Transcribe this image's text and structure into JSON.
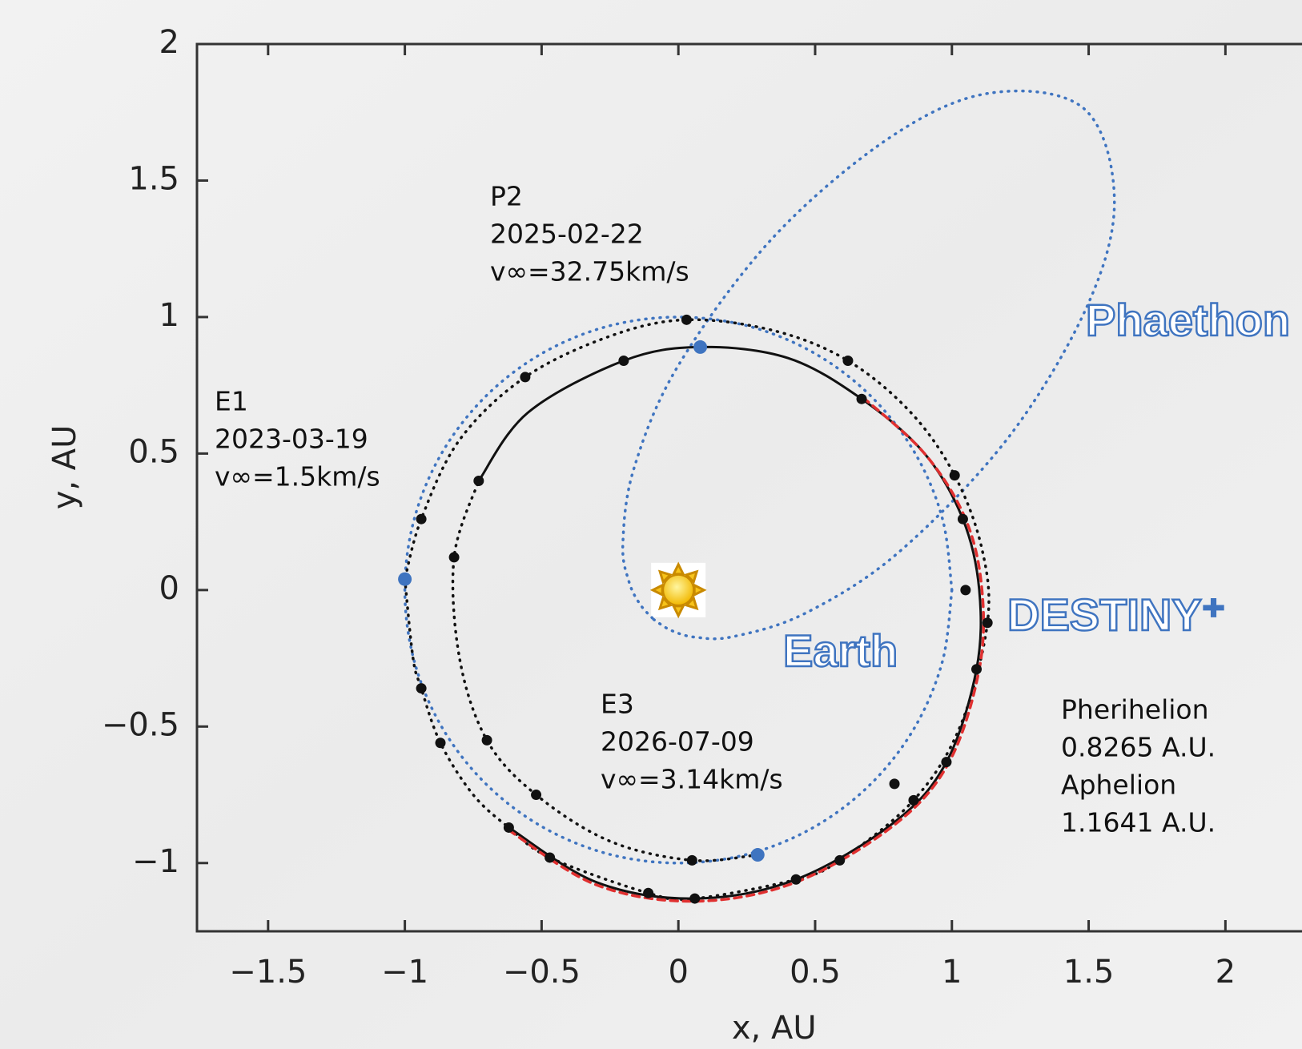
{
  "chart_data": {
    "type": "line",
    "xlabel": "x, AU",
    "ylabel": "y, AU",
    "xlim": [
      -1.76,
      2.28
    ],
    "ylim": [
      -1.25,
      2
    ],
    "xticks": [
      {
        "value": -1.5,
        "label": "−1.5"
      },
      {
        "value": -1,
        "label": "−1"
      },
      {
        "value": -0.5,
        "label": "−0.5"
      },
      0,
      0.5,
      1,
      1.5,
      2
    ],
    "yticks": [
      {
        "value": -1,
        "label": "−1"
      },
      {
        "value": -0.5,
        "label": "−0.5"
      },
      0,
      0.5,
      1,
      1.5,
      2
    ],
    "grid": false,
    "series": [
      {
        "mode": "line",
        "style": "dotted",
        "color": "#3f74c0",
        "x": [
          1,
          0.966,
          0.866,
          0.707,
          0.5,
          0.259,
          0,
          -0.259,
          -0.5,
          -0.707,
          -0.866,
          -0.966,
          -1,
          -0.966,
          -0.866,
          -0.707,
          -0.5,
          -0.259,
          0,
          0.259,
          0.5,
          0.707,
          0.866,
          0.966,
          1
        ],
        "y": [
          0,
          0.259,
          0.5,
          0.707,
          0.866,
          0.966,
          1,
          0.966,
          0.866,
          0.707,
          0.5,
          0.259,
          0,
          -0.259,
          -0.5,
          -0.707,
          -0.866,
          -0.966,
          -1,
          -0.966,
          -0.866,
          -0.707,
          -0.5,
          -0.259,
          0
        ]
      },
      {
        "mode": "line",
        "style": "dotted",
        "color": "#3f74c0",
        "x": [
          -0.09,
          -0.026,
          0.063,
          0.203,
          0.468,
          0.811,
          1.212,
          1.499,
          1.594,
          1.481,
          1.137,
          0.774,
          0.347,
          0,
          -0.162,
          -0.203,
          -0.181,
          -0.141,
          -0.09
        ],
        "y": [
          -0.108,
          -0.148,
          -0.173,
          -0.17,
          -0.083,
          0.143,
          0.566,
          1.05,
          1.436,
          1.765,
          1.82,
          1.658,
          1.292,
          0.823,
          0.447,
          0.17,
          0.032,
          -0.051,
          -0.108
        ]
      },
      {
        "mode": "line",
        "style": "dotted",
        "color": "#111111",
        "x": [
          -1.0,
          -0.97,
          -0.94,
          -0.87,
          -0.75,
          -0.62,
          -0.47,
          -0.11,
          0.06,
          0.43,
          0.59,
          0.86,
          1.03,
          1.13,
          1.11,
          1.01,
          0.85,
          0.62,
          0.35,
          0.03,
          -0.25,
          -0.56,
          -0.8,
          -0.94,
          -1.0
        ],
        "y": [
          0.04,
          -0.25,
          -0.36,
          -0.56,
          -0.75,
          -0.87,
          -0.98,
          -1.11,
          -1.13,
          -1.06,
          -0.99,
          -0.77,
          -0.5,
          -0.12,
          0.15,
          0.42,
          0.65,
          0.84,
          0.95,
          0.99,
          0.93,
          0.78,
          0.55,
          0.26,
          0.04
        ]
      },
      {
        "mode": "line",
        "style": "dotted",
        "color": "#111111",
        "x": [
          0.29,
          0.05,
          -0.25,
          -0.52,
          -0.7,
          -0.8,
          -0.82,
          -0.73
        ],
        "y": [
          -0.97,
          -0.99,
          -0.92,
          -0.75,
          -0.55,
          -0.25,
          0.12,
          0.4
        ]
      },
      {
        "mode": "line",
        "style": "solid",
        "color": "#111111",
        "x": [
          -0.73,
          -0.55,
          -0.2,
          0.08,
          0.4,
          0.67,
          0.9,
          1.04,
          1.1,
          1.09,
          0.98,
          0.79,
          0.43,
          0.06,
          -0.3,
          -0.62
        ],
        "y": [
          0.4,
          0.65,
          0.84,
          0.89,
          0.85,
          0.7,
          0.5,
          0.26,
          0.0,
          -0.29,
          -0.63,
          -0.85,
          -1.06,
          -1.13,
          -1.07,
          -0.87
        ]
      },
      {
        "mode": "line",
        "style": "dashed",
        "color": "#e03030",
        "x": [
          -0.62,
          -0.3,
          0.06,
          0.43,
          0.79,
          0.99,
          1.1,
          1.11,
          1.05,
          0.9,
          0.67
        ],
        "y": [
          -0.88,
          -1.08,
          -1.14,
          -1.07,
          -0.86,
          -0.63,
          -0.29,
          0.0,
          0.26,
          0.5,
          0.71
        ]
      },
      {
        "mode": "markers",
        "color": "#111111",
        "x": [
          0.03,
          -0.56,
          -0.2,
          0.62,
          0.67,
          1.01,
          -0.73,
          1.04,
          -0.94,
          -0.82,
          1.05,
          1.13,
          1.09,
          -0.94,
          -0.7,
          -0.87,
          0.98,
          0.79,
          -0.52,
          0.86,
          -0.62,
          -0.47,
          0.05,
          0.59,
          0.43,
          -0.11,
          0.06
        ],
        "y": [
          0.99,
          0.78,
          0.84,
          0.84,
          0.7,
          0.42,
          0.4,
          0.26,
          0.26,
          0.12,
          0.0,
          -0.12,
          -0.29,
          -0.36,
          -0.55,
          -0.56,
          -0.63,
          -0.71,
          -0.75,
          -0.77,
          -0.87,
          -0.98,
          -0.99,
          -0.99,
          -1.06,
          -1.11,
          -1.13
        ]
      },
      {
        "mode": "markers",
        "color": "#3f74c0",
        "x": [
          -1.0,
          0.08,
          0.29
        ],
        "y": [
          0.04,
          0.89,
          -0.97
        ]
      }
    ],
    "annotations": [
      {
        "lines": [
          "P2",
          "2025-02-22",
          "v∞=32.75km/s"
        ]
      },
      {
        "lines": [
          "E1",
          "2023-03-19",
          "v∞=1.5km/s"
        ]
      },
      {
        "lines": [
          "E3",
          "2026-07-09",
          "v∞=3.14km/s"
        ]
      },
      {
        "lines": [
          "Pherihelion",
          "0.8265 A.U.",
          "Aphelion",
          "1.1641 A.U."
        ]
      }
    ],
    "labels": [
      "Phaethon",
      "Earth",
      "DESTINY⁺"
    ],
    "label_color": "#3f74c0"
  }
}
